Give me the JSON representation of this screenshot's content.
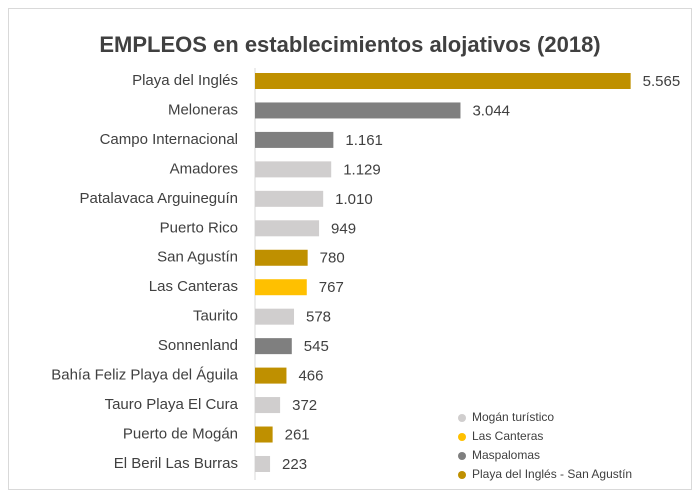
{
  "chart_data": {
    "type": "bar",
    "orientation": "horizontal",
    "title": "EMPLEOS en establecimientos alojativos (2018)",
    "categories": [
      "Playa del Inglés",
      "Meloneras",
      "Campo Internacional",
      "Amadores",
      "Patalavaca Arguineguín",
      "Puerto Rico",
      "San Agustín",
      "Las Canteras",
      "Taurito",
      "Sonnenland",
      "Bahía Feliz Playa del Águila",
      "Tauro Playa El Cura",
      "Puerto de Mogán",
      "El Beril Las Burras"
    ],
    "values": [
      5565,
      3044,
      1161,
      1129,
      1010,
      949,
      780,
      767,
      578,
      545,
      466,
      372,
      261,
      223
    ],
    "value_labels": [
      "5.565",
      "3.044",
      "1.161",
      "1.129",
      "1.010",
      "949",
      "780",
      "767",
      "578",
      "545",
      "466",
      "372",
      "261",
      "223"
    ],
    "colors": [
      "#bf9000",
      "#7f7f7f",
      "#7f7f7f",
      "#d0cece",
      "#d0cece",
      "#d0cece",
      "#bf9000",
      "#ffc000",
      "#d0cece",
      "#7f7f7f",
      "#bf9000",
      "#d0cece",
      "#bf9000",
      "#d0cece"
    ],
    "xlim": [
      0,
      6000
    ],
    "legend": [
      {
        "name": "Mogán turístico",
        "color": "#d0cece"
      },
      {
        "name": "Las Canteras",
        "color": "#ffc000"
      },
      {
        "name": "Maspalomas",
        "color": "#7f7f7f"
      },
      {
        "name": "Playa del Inglés - San Agustín",
        "color": "#bf9000"
      }
    ]
  }
}
